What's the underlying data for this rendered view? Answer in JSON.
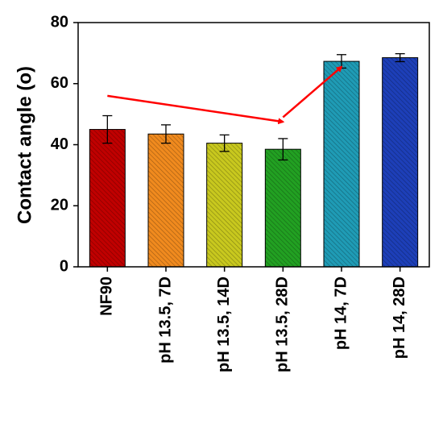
{
  "chart_data": {
    "type": "bar",
    "title": "",
    "xlabel": "",
    "ylabel": "Contact angle (o)",
    "ylim": [
      0,
      80
    ],
    "yticks": [
      0,
      20,
      40,
      60,
      80
    ],
    "grid": false,
    "categories": [
      "NF90",
      "pH 13.5, 7D",
      "pH 13.5, 14D",
      "pH 13.5, 28D",
      "pH 14, 7D",
      "pH 14, 28D"
    ],
    "values": [
      45.0,
      43.5,
      40.5,
      38.5,
      67.3,
      68.5
    ],
    "errors": [
      4.5,
      3.0,
      2.7,
      3.5,
      2.2,
      1.3
    ],
    "bar_colors": [
      "#c00000",
      "#f08a1e",
      "#c8c81e",
      "#22a022",
      "#1f9bb5",
      "#1d3fb8"
    ],
    "annotations": [
      {
        "type": "arrow",
        "color": "#ff0000",
        "from": [
          "NF90",
          56
        ],
        "to": [
          "pH 13.5, 28D",
          47.5
        ]
      },
      {
        "type": "arrow",
        "color": "#ff0000",
        "from": [
          "pH 13.5, 28D",
          49
        ],
        "to": [
          "pH 14, 7D",
          65.5
        ]
      }
    ]
  }
}
